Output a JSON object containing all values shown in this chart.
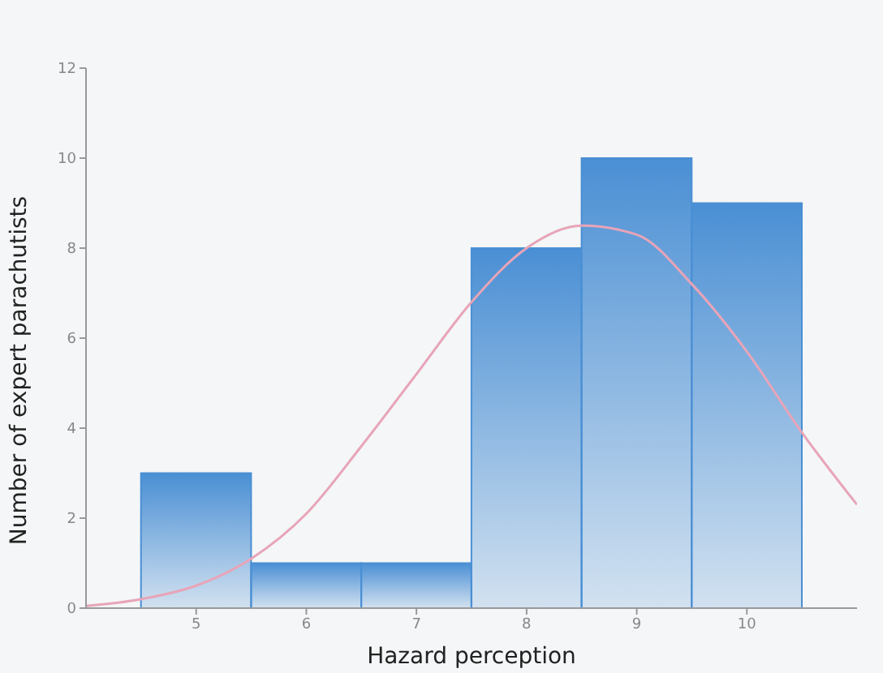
{
  "chart_data": {
    "type": "histogram",
    "xlabel": "Hazard perception",
    "ylabel": "Number of expert parachutists",
    "bins": [
      4.5,
      5.5,
      6.5,
      7.5,
      8.5,
      9.5,
      10.5
    ],
    "values": [
      3,
      1,
      1,
      8,
      10,
      9
    ],
    "color": "#4a8fd4",
    "series": [
      {
        "type": "line",
        "color": "#e8a4b8",
        "x": [
          4,
          4.5,
          5,
          5.5,
          6,
          6.5,
          7,
          7.5,
          8,
          8.5,
          9,
          9.5,
          10,
          10.5,
          11
        ],
        "values": [
          0.05,
          0.2,
          0.5,
          1.1,
          2.1,
          3.6,
          5.2,
          6.8,
          8.0,
          8.5,
          8.3,
          7.2,
          5.7,
          3.9,
          2.3
        ]
      }
    ],
    "xlim": [
      4,
      11
    ],
    "xticks": [
      5,
      6,
      7,
      8,
      9,
      10
    ],
    "ylim": [
      0,
      12
    ],
    "yticks": [
      0,
      2,
      4,
      6,
      8,
      10,
      12
    ],
    "grid": false,
    "legend": false
  }
}
